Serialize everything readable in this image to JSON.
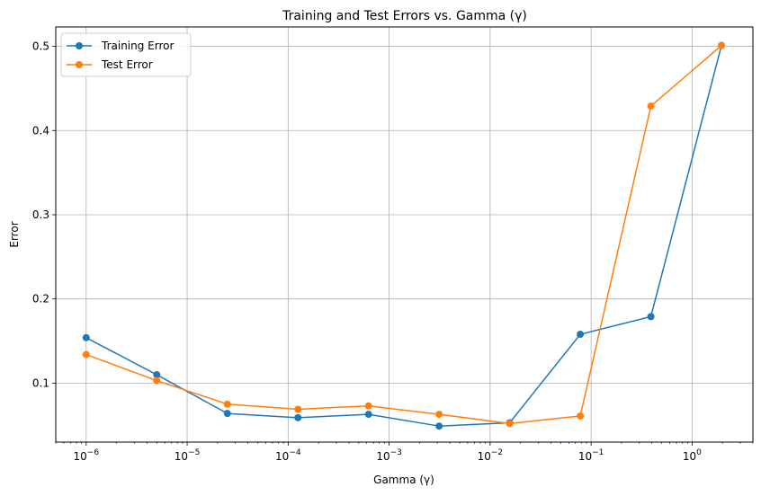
{
  "chart_data": {
    "type": "line",
    "title": "Training and Test Errors vs. Gamma (γ)",
    "xlabel": "Gamma (γ)",
    "ylabel": "Error",
    "x_scale": "log",
    "xlim": [
      5e-07,
      4
    ],
    "ylim": [
      0.03,
      0.523
    ],
    "grid": true,
    "legend_position": "top-left",
    "x": [
      1e-06,
      5e-06,
      2.5e-05,
      0.000125,
      0.000625,
      0.003125,
      0.015625,
      0.078125,
      0.390625,
      1.953125
    ],
    "x_ticks": [
      {
        "value": 1e-06,
        "label": "10−6",
        "base": "10",
        "exp": "−6"
      },
      {
        "value": 1e-05,
        "label": "10−5",
        "base": "10",
        "exp": "−5"
      },
      {
        "value": 0.0001,
        "label": "10−4",
        "base": "10",
        "exp": "−4"
      },
      {
        "value": 0.001,
        "label": "10−3",
        "base": "10",
        "exp": "−3"
      },
      {
        "value": 0.01,
        "label": "10−2",
        "base": "10",
        "exp": "−2"
      },
      {
        "value": 0.1,
        "label": "10−1",
        "base": "10",
        "exp": "−1"
      },
      {
        "value": 1,
        "label": "100",
        "base": "10",
        "exp": "0"
      }
    ],
    "y_ticks": [
      {
        "value": 0.1,
        "label": "0.1"
      },
      {
        "value": 0.2,
        "label": "0.2"
      },
      {
        "value": 0.3,
        "label": "0.3"
      },
      {
        "value": 0.4,
        "label": "0.4"
      },
      {
        "value": 0.5,
        "label": "0.5"
      }
    ],
    "series": [
      {
        "name": "Training Error",
        "color": "#1f77b4",
        "values": [
          0.154,
          0.11,
          0.064,
          0.059,
          0.063,
          0.049,
          0.053,
          0.158,
          0.179,
          0.501
        ]
      },
      {
        "name": "Test Error",
        "color": "#ff7f0e",
        "values": [
          0.134,
          0.103,
          0.075,
          0.069,
          0.073,
          0.063,
          0.052,
          0.061,
          0.429,
          0.501
        ]
      }
    ]
  }
}
